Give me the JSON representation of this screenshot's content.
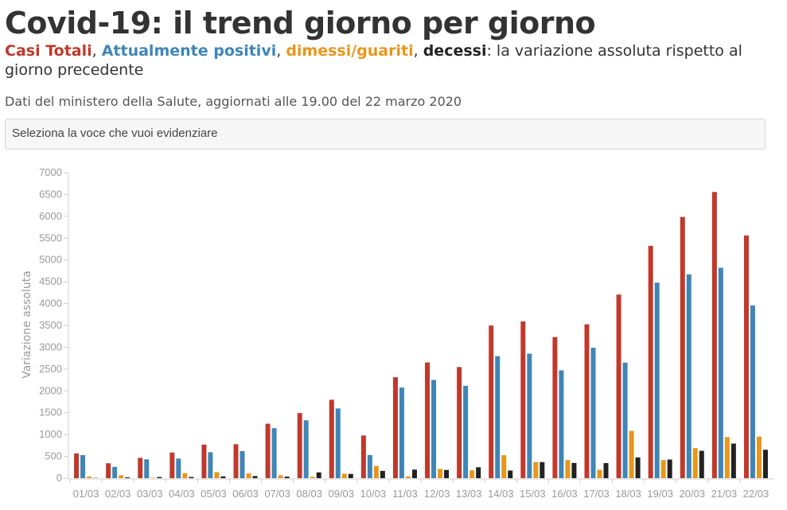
{
  "header": {
    "title": "Covid-19: il trend giorno per giorno",
    "subtitle": {
      "casi_totali": "Casi Totali",
      "sep1": ", ",
      "attualmente_positivi": "Attualmente positivi",
      "sep2": ", ",
      "dimessi_guariti": "dimessi/guariti",
      "sep3": ", ",
      "decessi": "decessi",
      "rest": ": la variazione assoluta rispetto al giorno precedente"
    },
    "source": "Dati del ministero della Salute, aggiornati alle 19.00 del 22 marzo 2020"
  },
  "selector": {
    "placeholder": "Seleziona la voce che vuoi evidenziare"
  },
  "chart_data": {
    "type": "bar",
    "title": "",
    "xlabel": "",
    "ylabel": "Variazione assoluta",
    "ylim": [
      0,
      7000
    ],
    "y_ticks": [
      0,
      500,
      1000,
      1500,
      2000,
      2500,
      3000,
      3500,
      4000,
      4500,
      5000,
      5500,
      6000,
      6500,
      7000
    ],
    "grid": false,
    "categories": [
      "01/03",
      "02/03",
      "03/03",
      "04/03",
      "05/03",
      "06/03",
      "07/03",
      "08/03",
      "09/03",
      "10/03",
      "11/03",
      "12/03",
      "13/03",
      "14/03",
      "15/03",
      "16/03",
      "17/03",
      "18/03",
      "19/03",
      "20/03",
      "21/03",
      "22/03"
    ],
    "series": [
      {
        "name": "Casi Totali",
        "color": "#c0392b",
        "values": [
          566,
          342,
          466,
          587,
          769,
          778,
          1247,
          1492,
          1797,
          977,
          2313,
          2651,
          2547,
          3497,
          3590,
          3233,
          3526,
          4207,
          5322,
          5986,
          6557,
          5560
        ]
      },
      {
        "name": "Attualmente positivi",
        "color": "#3e86b8",
        "values": [
          528,
          258,
          431,
          449,
          595,
          621,
          1145,
          1326,
          1598,
          529,
          2076,
          2250,
          2116,
          2795,
          2853,
          2470,
          2989,
          2648,
          4480,
          4670,
          4821,
          3957
        ]
      },
      {
        "name": "dimessi/guariti",
        "color": "#e8961c",
        "values": [
          37,
          66,
          11,
          116,
          138,
          109,
          66,
          33,
          102,
          280,
          41,
          213,
          181,
          527,
          369,
          414,
          192,
          1084,
          415,
          689,
          943,
          952
        ]
      },
      {
        "name": "decessi",
        "color": "#222222",
        "values": [
          5,
          18,
          27,
          28,
          41,
          49,
          36,
          133,
          97,
          168,
          196,
          189,
          250,
          175,
          368,
          349,
          345,
          475,
          427,
          627,
          793,
          651
        ]
      }
    ]
  }
}
